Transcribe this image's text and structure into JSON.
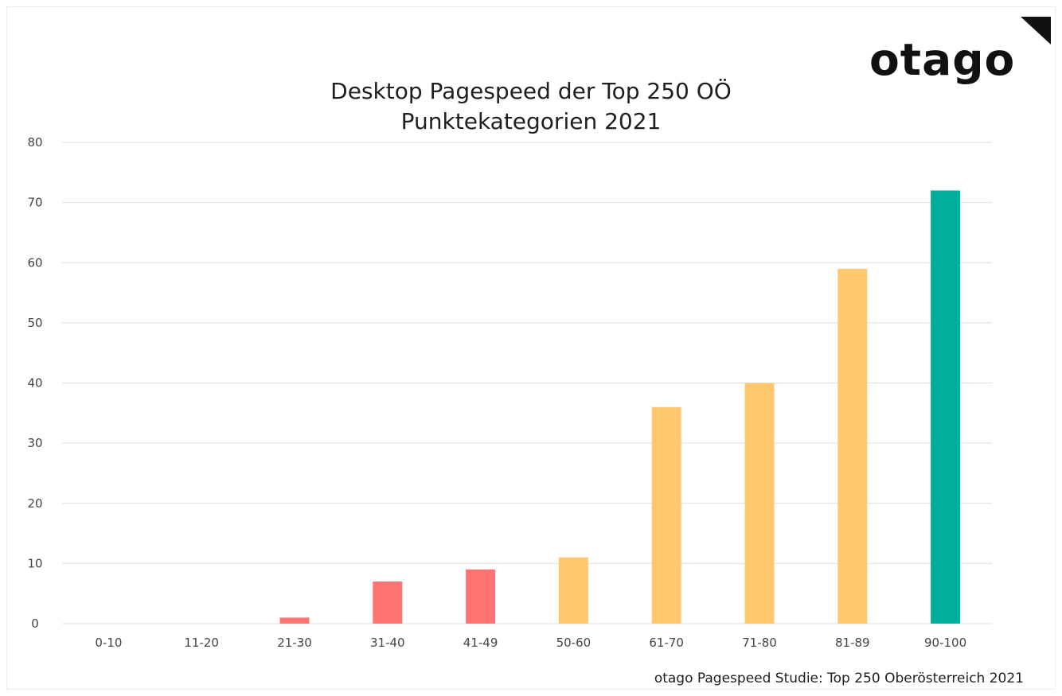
{
  "brand": {
    "logo_text": "otago",
    "logo_color": "#111111"
  },
  "footer": {
    "source": "otago Pagespeed Studie: Top 250 Oberösterreich 2021"
  },
  "chart_data": {
    "type": "bar",
    "title": "Desktop Pagespeed der Top 250 OÖ",
    "subtitle": "Punktekategorien 2021",
    "categories": [
      "0-10",
      "11-20",
      "21-30",
      "31-40",
      "41-49",
      "50-60",
      "61-70",
      "71-80",
      "81-89",
      "90-100"
    ],
    "values": [
      0,
      0,
      1,
      7,
      9,
      11,
      36,
      40,
      59,
      72
    ],
    "colors": [
      "#ff7373",
      "#ff7373",
      "#ff7373",
      "#ff7373",
      "#ff7373",
      "#ffc86e",
      "#ffc86e",
      "#ffc86e",
      "#ffc86e",
      "#00ae9b"
    ],
    "yticks": [
      0,
      10,
      20,
      30,
      40,
      50,
      60,
      70,
      80
    ],
    "ylim": [
      0,
      80
    ],
    "grid": true,
    "xlabel": "",
    "ylabel": ""
  }
}
